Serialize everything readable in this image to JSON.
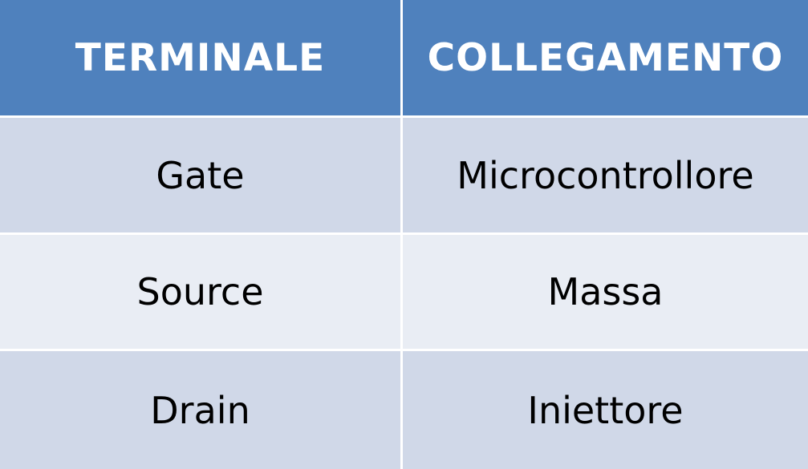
{
  "table": {
    "headers": [
      "TERMINALE",
      "COLLEGAMENTO"
    ],
    "rows": [
      [
        "Gate",
        "Microcontrollore"
      ],
      [
        "Source",
        "Massa"
      ],
      [
        "Drain",
        "Iniettore"
      ]
    ]
  },
  "colors": {
    "header_bg": "#4f81bd",
    "header_text": "#ffffff",
    "row_dark": "#d0d8e8",
    "row_light": "#e9edf4"
  }
}
